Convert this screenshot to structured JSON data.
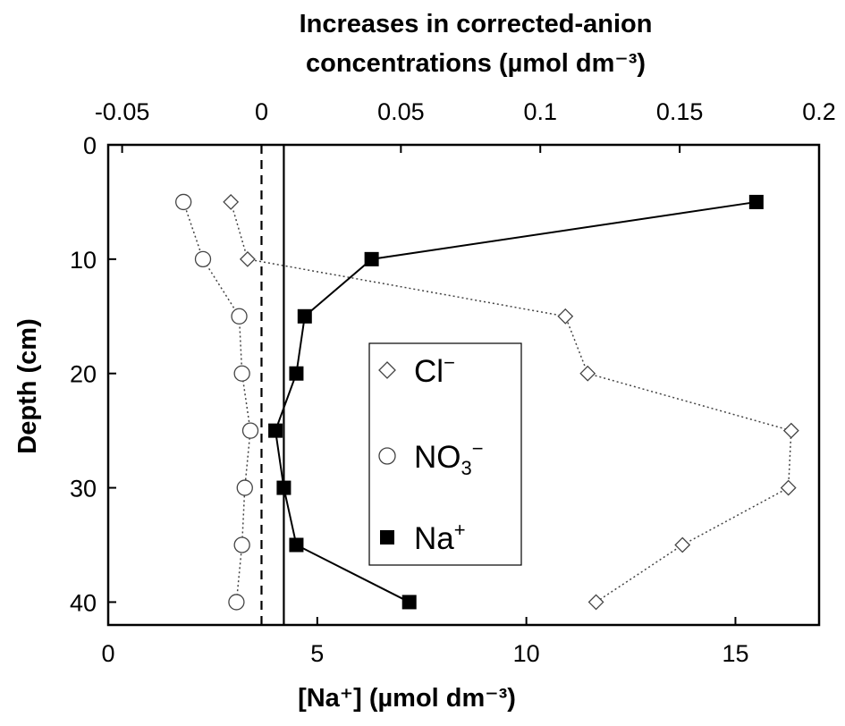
{
  "chart_data": {
    "type": "scatter",
    "top_axis": {
      "title_line1": "Increases in corrected-anion",
      "title_line2": "concentrations (µmol dm⁻³)",
      "range": [
        -0.055,
        0.2
      ],
      "ticks": [
        -0.05,
        0,
        0.05,
        0.1,
        0.15,
        0.2
      ],
      "tick_labels": [
        "-0.05",
        "0",
        "0.05",
        "0.1",
        "0.15",
        "0.2"
      ],
      "zero_reference_line": "dashed"
    },
    "bottom_axis": {
      "title": "[Na⁺] (µmol dm⁻³)",
      "range": [
        0,
        17
      ],
      "ticks": [
        0,
        5,
        10,
        15
      ],
      "tick_labels": [
        "0",
        "5",
        "10",
        "15"
      ]
    },
    "y_axis": {
      "title": "Depth (cm)",
      "range": [
        0,
        42
      ],
      "inverted": true,
      "ticks": [
        0,
        10,
        20,
        30,
        40
      ],
      "tick_labels": [
        "0",
        "10",
        "20",
        "30",
        "40"
      ]
    },
    "reference_lines": [
      {
        "axis": "top",
        "value": 0,
        "style": "dashed"
      },
      {
        "axis": "bottom",
        "value": 4.2,
        "style": "solid"
      }
    ],
    "legend": {
      "placement": "center-right",
      "entries": [
        {
          "label": "Cl",
          "superscript": "−",
          "marker": "diamond-open"
        },
        {
          "label": "NO",
          "subscript": "3",
          "superscript": "−",
          "marker": "circle-open"
        },
        {
          "label": "Na",
          "superscript": "+",
          "marker": "square-filled"
        }
      ]
    },
    "series": [
      {
        "name": "Cl⁻",
        "x_axis": "top",
        "marker": "diamond-open",
        "line": "dotted",
        "points": [
          {
            "depth": 5,
            "value": -0.011
          },
          {
            "depth": 10,
            "value": -0.005
          },
          {
            "depth": 15,
            "value": 0.109
          },
          {
            "depth": 20,
            "value": 0.117
          },
          {
            "depth": 25,
            "value": 0.19
          },
          {
            "depth": 30,
            "value": 0.189
          },
          {
            "depth": 35,
            "value": 0.151
          },
          {
            "depth": 40,
            "value": 0.12
          }
        ]
      },
      {
        "name": "NO₃⁻",
        "x_axis": "top",
        "marker": "circle-open",
        "line": "dotted",
        "points": [
          {
            "depth": 5,
            "value": -0.028
          },
          {
            "depth": 10,
            "value": -0.021
          },
          {
            "depth": 15,
            "value": -0.008
          },
          {
            "depth": 20,
            "value": -0.007
          },
          {
            "depth": 25,
            "value": -0.004
          },
          {
            "depth": 30,
            "value": -0.006
          },
          {
            "depth": 35,
            "value": -0.007
          },
          {
            "depth": 40,
            "value": -0.009
          }
        ]
      },
      {
        "name": "Na⁺",
        "x_axis": "bottom",
        "marker": "square-filled",
        "line": "solid",
        "points": [
          {
            "depth": 5,
            "value": 15.5
          },
          {
            "depth": 10,
            "value": 6.3
          },
          {
            "depth": 15,
            "value": 4.7
          },
          {
            "depth": 20,
            "value": 4.5
          },
          {
            "depth": 25,
            "value": 4.0
          },
          {
            "depth": 30,
            "value": 4.2
          },
          {
            "depth": 35,
            "value": 4.5
          },
          {
            "depth": 40,
            "value": 7.2
          }
        ]
      }
    ]
  }
}
